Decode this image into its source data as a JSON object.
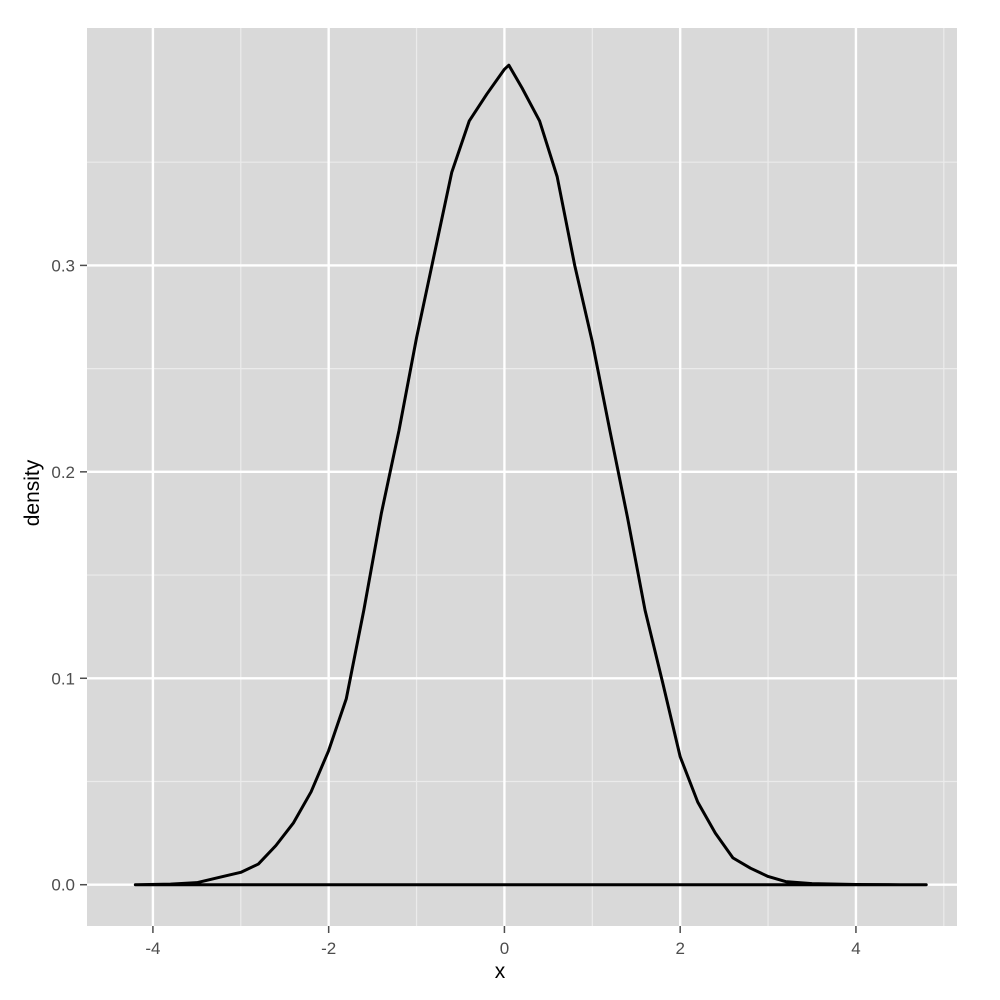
{
  "chart_data": {
    "type": "area",
    "title": "",
    "xlabel": "x",
    "ylabel": "density",
    "xlim": [
      -4.75,
      5.15
    ],
    "ylim": [
      -0.02,
      0.415
    ],
    "x_ticks": [
      -4,
      -2,
      0,
      2,
      4
    ],
    "x_tick_labels": [
      "-4",
      "-2",
      "0",
      "2",
      "4"
    ],
    "y_ticks": [
      0.0,
      0.1,
      0.2,
      0.3
    ],
    "y_tick_labels": [
      "0.0",
      "0.1",
      "0.2",
      "0.3"
    ],
    "grid": true,
    "legend": "none",
    "series": [
      {
        "x": [
          -4.2,
          -3.8,
          -3.5,
          -3.2,
          -3.0,
          -2.8,
          -2.6,
          -2.4,
          -2.2,
          -2.0,
          -1.8,
          -1.6,
          -1.4,
          -1.2,
          -1.0,
          -0.8,
          -0.6,
          -0.4,
          -0.2,
          0.0,
          0.05,
          0.2,
          0.4,
          0.6,
          0.8,
          1.0,
          1.2,
          1.4,
          1.6,
          1.8,
          2.0,
          2.2,
          2.4,
          2.6,
          2.8,
          3.0,
          3.2,
          3.5,
          4.0,
          4.5,
          4.8
        ],
        "y": [
          0.0,
          0.0003,
          0.001,
          0.004,
          0.006,
          0.01,
          0.019,
          0.03,
          0.045,
          0.065,
          0.09,
          0.133,
          0.18,
          0.22,
          0.265,
          0.305,
          0.345,
          0.37,
          0.383,
          0.395,
          0.397,
          0.386,
          0.37,
          0.343,
          0.3,
          0.263,
          0.22,
          0.178,
          0.133,
          0.098,
          0.062,
          0.04,
          0.025,
          0.013,
          0.008,
          0.004,
          0.0015,
          0.0005,
          0.0001,
          0.0,
          0.0
        ]
      }
    ],
    "colors": {
      "panel": "#d9d9d9",
      "grid_major": "#ffffff",
      "grid_minor": "#ebebeb",
      "line": "#000000",
      "tick": "#4d4d4d"
    }
  }
}
